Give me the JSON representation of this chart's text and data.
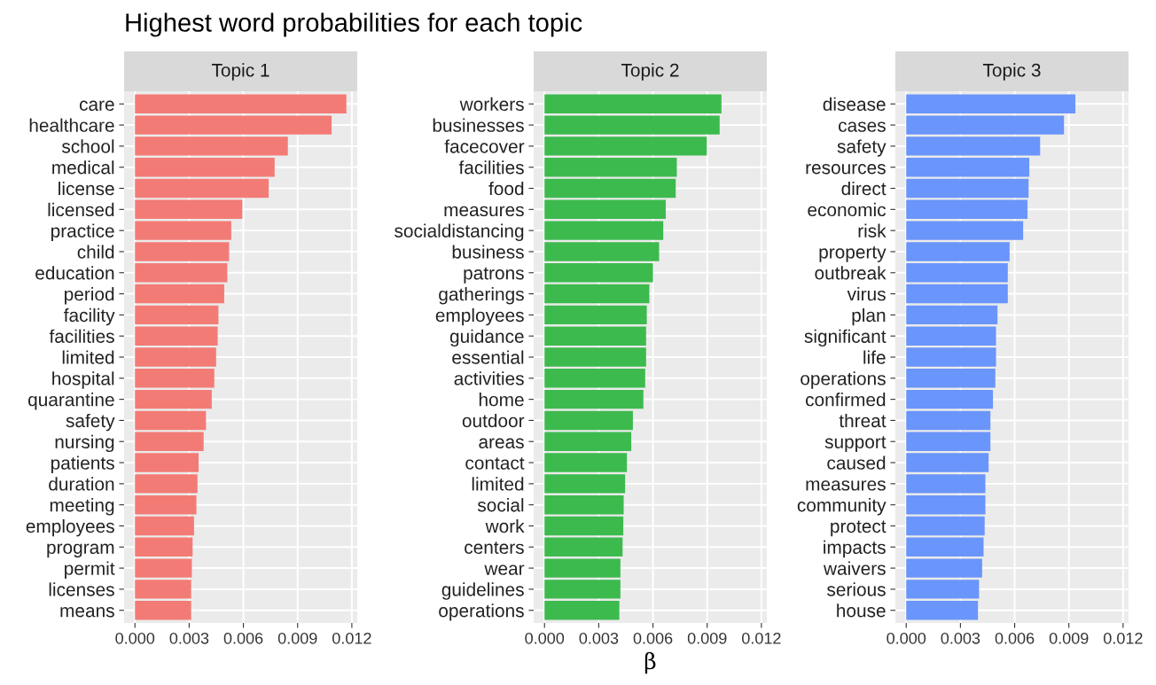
{
  "chart_data": [
    {
      "type": "bar",
      "orientation": "horizontal",
      "title": "Highest word probabilities for each topic",
      "subtitle": "Topic 1",
      "grid": true,
      "categories": [
        "care",
        "healthcare",
        "school",
        "medical",
        "license",
        "licensed",
        "practice",
        "child",
        "education",
        "period",
        "facility",
        "facilities",
        "limited",
        "hospital",
        "quarantine",
        "safety",
        "nursing",
        "patients",
        "duration",
        "meeting",
        "employees",
        "program",
        "permit",
        "licenses",
        "means"
      ],
      "values": [
        0.0117,
        0.01088,
        0.00846,
        0.00773,
        0.0074,
        0.00594,
        0.00533,
        0.00521,
        0.00511,
        0.00494,
        0.00462,
        0.00458,
        0.00449,
        0.00439,
        0.00425,
        0.00393,
        0.0038,
        0.00352,
        0.00346,
        0.0034,
        0.00327,
        0.00319,
        0.00315,
        0.00311,
        0.00311
      ],
      "color": "#f37b76",
      "xlim": [
        -0.0006,
        0.0123
      ],
      "xticks": [
        {
          "value": 0,
          "label": "0.000"
        },
        {
          "value": 0.003,
          "label": "0.003"
        },
        {
          "value": 0.006,
          "label": "0.006"
        },
        {
          "value": 0.009,
          "label": "0.009"
        },
        {
          "value": 0.012,
          "label": "0.012"
        }
      ]
    },
    {
      "type": "bar",
      "orientation": "horizontal",
      "subtitle": "Topic 2",
      "xlabel": "β",
      "grid": true,
      "categories": [
        "workers",
        "businesses",
        "facecover",
        "facilities",
        "food",
        "measures",
        "socialdistancing",
        "business",
        "patrons",
        "gatherings",
        "employees",
        "guidance",
        "essential",
        "activities",
        "home",
        "outdoor",
        "areas",
        "contact",
        "limited",
        "social",
        "work",
        "centers",
        "wear",
        "guidelines",
        "operations"
      ],
      "values": [
        0.00979,
        0.00969,
        0.00898,
        0.00732,
        0.00726,
        0.00671,
        0.00657,
        0.00634,
        0.006,
        0.0058,
        0.00566,
        0.00562,
        0.00562,
        0.00557,
        0.00547,
        0.00489,
        0.0048,
        0.00456,
        0.00446,
        0.00438,
        0.00436,
        0.00432,
        0.0042,
        0.0042,
        0.00414
      ],
      "color": "#3dba4e",
      "xlim": [
        -0.0006,
        0.0123
      ],
      "xticks": [
        {
          "value": 0,
          "label": "0.000"
        },
        {
          "value": 0.003,
          "label": "0.003"
        },
        {
          "value": 0.006,
          "label": "0.006"
        },
        {
          "value": 0.009,
          "label": "0.009"
        },
        {
          "value": 0.012,
          "label": "0.012"
        }
      ]
    },
    {
      "type": "bar",
      "orientation": "horizontal",
      "subtitle": "Topic 3",
      "grid": true,
      "categories": [
        "disease",
        "cases",
        "safety",
        "resources",
        "direct",
        "economic",
        "risk",
        "property",
        "outbreak",
        "virus",
        "plan",
        "significant",
        "life",
        "operations",
        "confirmed",
        "threat",
        "support",
        "caused",
        "measures",
        "community",
        "protect",
        "impacts",
        "waivers",
        "serious",
        "house"
      ],
      "values": [
        0.00936,
        0.00873,
        0.00741,
        0.00681,
        0.00677,
        0.00671,
        0.00647,
        0.00572,
        0.00562,
        0.00562,
        0.00505,
        0.00497,
        0.00497,
        0.00493,
        0.0048,
        0.00466,
        0.00466,
        0.00456,
        0.00438,
        0.00438,
        0.00434,
        0.00428,
        0.0042,
        0.00403,
        0.00397
      ],
      "color": "#6a95fa",
      "xlim": [
        -0.0006,
        0.0123
      ],
      "xticks": [
        {
          "value": 0,
          "label": "0.000"
        },
        {
          "value": 0.003,
          "label": "0.003"
        },
        {
          "value": 0.006,
          "label": "0.006"
        },
        {
          "value": 0.009,
          "label": "0.009"
        },
        {
          "value": 0.012,
          "label": "0.012"
        }
      ]
    }
  ]
}
